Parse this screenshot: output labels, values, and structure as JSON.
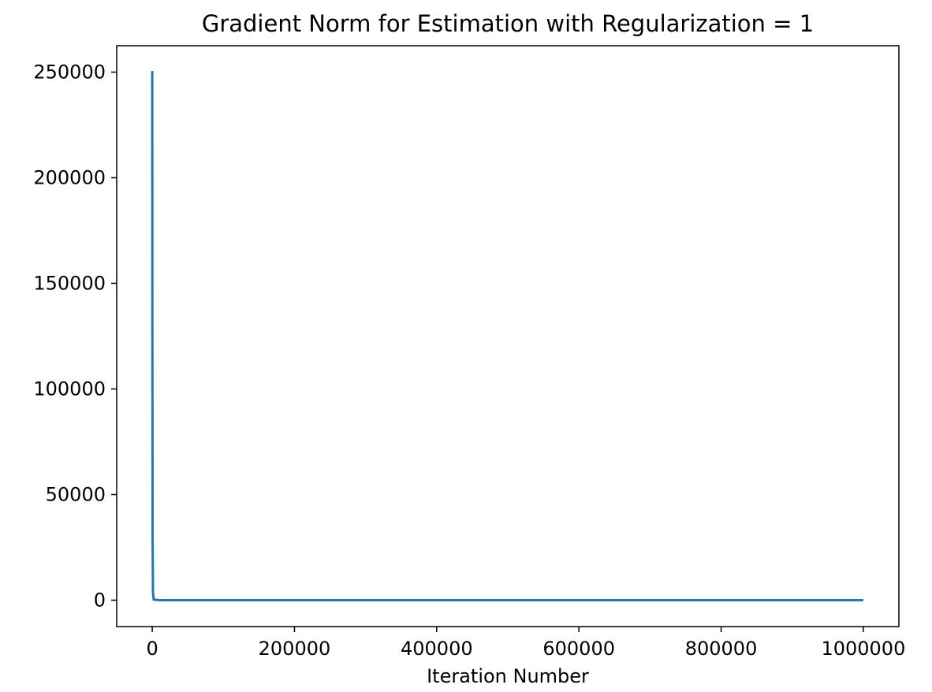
{
  "chart_data": {
    "type": "line",
    "title": "Gradient Norm for Estimation with Regularization = 1",
    "xlabel": "Iteration Number",
    "ylabel": "",
    "xlim": [
      -50000,
      1050000
    ],
    "ylim": [
      -12500,
      262500
    ],
    "xticks": [
      0,
      200000,
      400000,
      600000,
      800000,
      1000000
    ],
    "xtick_labels": [
      "0",
      "200000",
      "400000",
      "600000",
      "800000",
      "1000000"
    ],
    "yticks": [
      0,
      50000,
      100000,
      150000,
      200000,
      250000
    ],
    "ytick_labels": [
      "0",
      "50000",
      "100000",
      "150000",
      "200000",
      "250000"
    ],
    "grid": false,
    "series": [
      {
        "name": "gradient norm",
        "color": "#1f77b4",
        "x": [
          0,
          200,
          500,
          1000,
          2000,
          10000,
          100000,
          500000,
          1000000
        ],
        "y": [
          250500,
          120000,
          30000,
          4000,
          300,
          20,
          5,
          2,
          1
        ]
      }
    ]
  }
}
